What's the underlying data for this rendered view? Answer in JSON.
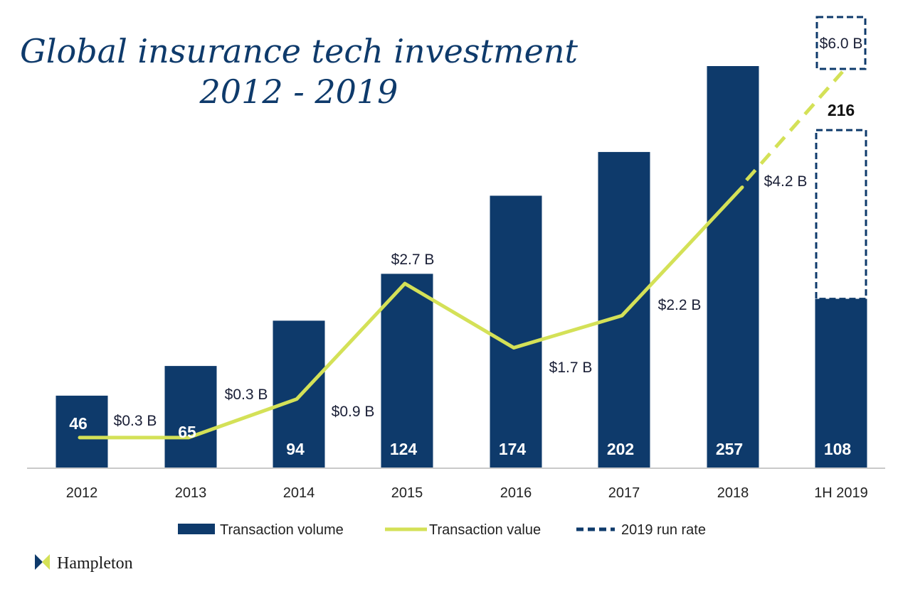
{
  "chart_data": {
    "type": "bar",
    "title": "Global insurance tech investment",
    "subtitle": "2012 - 2019",
    "categories": [
      "2012",
      "2013",
      "2014",
      "2015",
      "2016",
      "2017",
      "2018",
      "1H 2019"
    ],
    "series": [
      {
        "name": "Transaction volume",
        "type": "bar",
        "color": "#0e3a6b",
        "values": [
          46,
          65,
          94,
          124,
          174,
          202,
          257,
          108
        ],
        "labels": [
          "46",
          "65",
          "94",
          "124",
          "174",
          "202",
          "257",
          "108"
        ]
      },
      {
        "name": "Transaction value",
        "type": "line",
        "color": "#d4e157",
        "values": [
          0.3,
          0.3,
          0.9,
          2.7,
          1.7,
          2.2,
          4.2,
          null
        ],
        "labels": [
          "$0.3 B",
          "$0.3 B",
          "$0.9 B",
          "$2.7 B",
          "$1.7 B",
          "$2.2 B",
          "$4.2 B",
          ""
        ]
      },
      {
        "name": "2019 run rate",
        "type": "dashed",
        "color": "#0e3a6b",
        "volume": 216,
        "volume_label": "216",
        "value": 6.0,
        "value_label": "$6.0 B"
      }
    ],
    "legend": [
      "Transaction volume",
      "Transaction value",
      "2019 run rate"
    ],
    "legend_position": "bottom",
    "grid": false,
    "ylim_volume": [
      0,
      257
    ],
    "ylim_value": [
      0,
      6.0
    ]
  },
  "branding": {
    "logo_text": "Hampleton",
    "logo_colors": [
      "#0e3a6b",
      "#d4e157"
    ]
  }
}
